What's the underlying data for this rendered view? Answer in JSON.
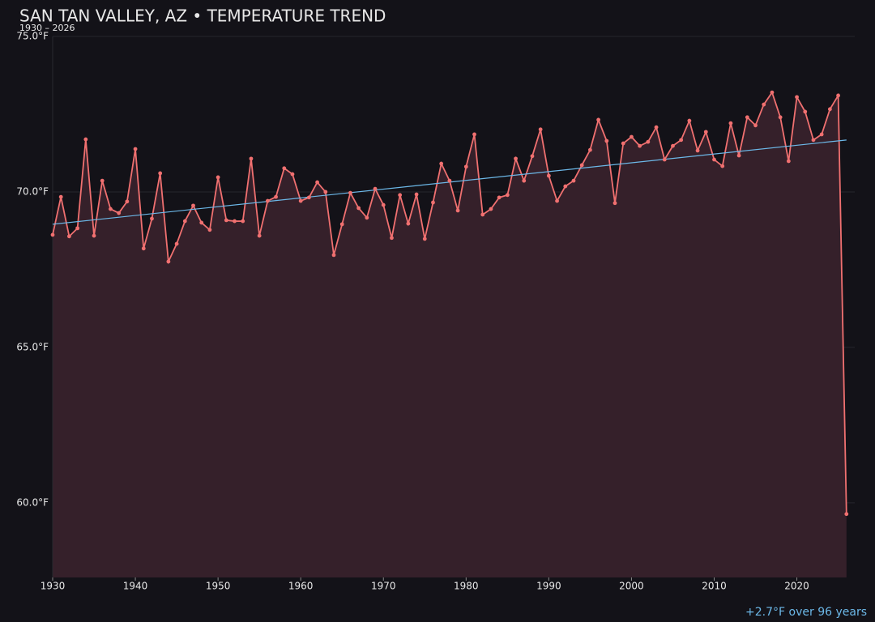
{
  "chart_data": {
    "type": "line",
    "title": "SAN TAN VALLEY, AZ • TEMPERATURE TREND",
    "subtitle": "1930 – 2026",
    "annotation": "+2.7°F over 96 years",
    "x": [
      1930,
      1931,
      1932,
      1933,
      1934,
      1935,
      1936,
      1937,
      1938,
      1939,
      1940,
      1941,
      1942,
      1943,
      1944,
      1945,
      1946,
      1947,
      1948,
      1949,
      1950,
      1951,
      1952,
      1953,
      1954,
      1955,
      1956,
      1957,
      1958,
      1959,
      1960,
      1961,
      1962,
      1963,
      1964,
      1965,
      1966,
      1967,
      1968,
      1969,
      1970,
      1971,
      1972,
      1973,
      1974,
      1975,
      1976,
      1977,
      1978,
      1979,
      1980,
      1981,
      1982,
      1983,
      1984,
      1985,
      1986,
      1987,
      1988,
      1989,
      1990,
      1991,
      1992,
      1993,
      1994,
      1995,
      1996,
      1997,
      1998,
      1999,
      2000,
      2001,
      2002,
      2003,
      2004,
      2005,
      2006,
      2007,
      2008,
      2009,
      2010,
      2011,
      2012,
      2013,
      2014,
      2015,
      2016,
      2017,
      2018,
      2019,
      2020,
      2021,
      2022,
      2023,
      2024,
      2025,
      2026
    ],
    "series": [
      {
        "color": "#f07070",
        "area_color": "#35202a",
        "values": [
          68.62,
          69.84,
          68.57,
          68.83,
          71.69,
          68.59,
          70.36,
          69.45,
          69.32,
          69.69,
          71.38,
          68.18,
          69.14,
          70.6,
          67.76,
          68.33,
          69.06,
          69.56,
          69.01,
          68.78,
          70.47,
          69.09,
          69.06,
          69.06,
          71.07,
          68.59,
          69.71,
          69.84,
          70.76,
          70.57,
          69.71,
          69.82,
          70.31,
          70.0,
          67.97,
          68.96,
          69.97,
          69.48,
          69.17,
          70.1,
          69.58,
          68.52,
          69.9,
          68.98,
          69.92,
          68.49,
          69.66,
          70.91,
          70.36,
          69.4,
          70.81,
          71.85,
          69.27,
          69.45,
          69.82,
          69.9,
          71.07,
          70.36,
          71.15,
          72.01,
          70.52,
          69.71,
          70.18,
          70.36,
          70.86,
          71.35,
          72.32,
          71.64,
          69.64,
          71.56,
          71.77,
          71.48,
          71.61,
          72.08,
          71.04,
          71.48,
          71.67,
          72.29,
          71.33,
          71.93,
          71.04,
          70.83,
          72.21,
          71.17,
          72.4,
          72.14,
          72.81,
          73.2,
          72.4,
          70.99,
          73.05,
          72.58,
          71.67,
          71.85,
          72.66,
          73.1,
          59.64
        ]
      }
    ],
    "trend": {
      "color": "#6cb8e8",
      "x": [
        1930,
        2026
      ],
      "values": [
        68.96,
        71.67
      ]
    },
    "xlim": [
      1930,
      2027
    ],
    "ylim": [
      57.6,
      75
    ],
    "xticks": [
      1930,
      1940,
      1950,
      1960,
      1970,
      1980,
      1990,
      2000,
      2010,
      2020
    ],
    "yticks": [
      {
        "value": 60,
        "label": "60.0°F"
      },
      {
        "value": 65,
        "label": "65.0°F"
      },
      {
        "value": 70,
        "label": "70.0°F"
      },
      {
        "value": 75,
        "label": "75.0°F"
      }
    ],
    "grid": true
  }
}
